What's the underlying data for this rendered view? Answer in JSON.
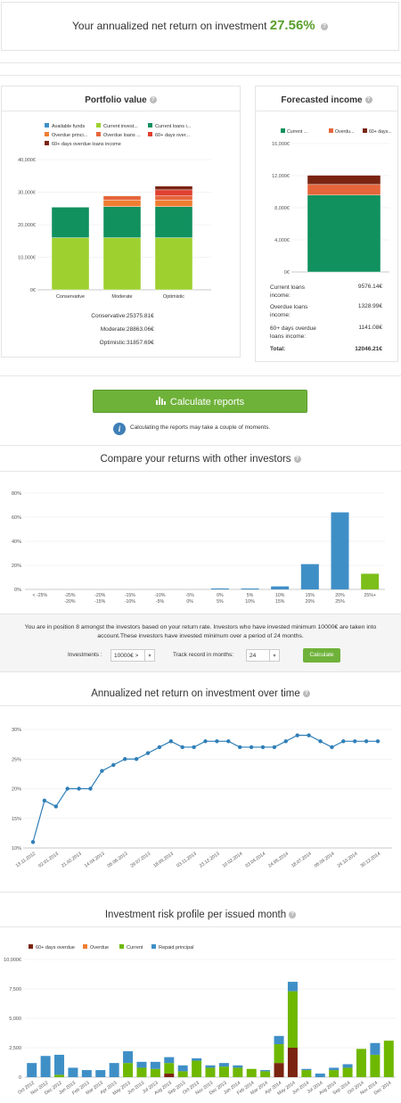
{
  "header": {
    "text": "Your annualized net return on investment",
    "value": "27.56%",
    "accent": "#5aa02c"
  },
  "portfolio": {
    "title": "Portfolio value",
    "legend": [
      {
        "label": "Available funds",
        "color": "#3f8fc7"
      },
      {
        "label": "Current invest...",
        "color": "#9ed02f"
      },
      {
        "label": "Current loans i...",
        "color": "#10915e"
      },
      {
        "label": "Overdue princi...",
        "color": "#ef7d31"
      },
      {
        "label": "Overdue loans ...",
        "color": "#e5663b"
      },
      {
        "label": "60+ days over...",
        "color": "#e04030"
      },
      {
        "label": "60+ days overdue loans income",
        "color": "#7b2412"
      }
    ],
    "summary": [
      {
        "label": "Conservative:",
        "value": "25375.81€"
      },
      {
        "label": "Moderate:",
        "value": "28863.06€"
      },
      {
        "label": "Optimistic:",
        "value": "31857.69€"
      }
    ]
  },
  "forecast": {
    "title": "Forecasted income",
    "legend": [
      {
        "label": "Current ...",
        "color": "#10915e"
      },
      {
        "label": "Overdu...",
        "color": "#e5663b"
      },
      {
        "label": "60+ days...",
        "color": "#7b2412"
      }
    ],
    "rows": [
      {
        "label": "Current loans income:",
        "value": "9576.14€"
      },
      {
        "label": "Overdue loans income:",
        "value": "1328.99€"
      },
      {
        "label": "60+ days overdue loans income:",
        "value": "1141.08€"
      },
      {
        "label": "Total:",
        "value": "12046.21€"
      }
    ]
  },
  "calc": {
    "button": "Calculate reports",
    "note": "Calculating the reports may take a couple of moments."
  },
  "compare": {
    "title": "Compare your returns with other investors",
    "position_text": "You are in position 8 amongst the investors based on your return rate. Investors who have invested minimum 10000€ are taken into account.These investors have invested minimum over a period of 24 months.",
    "investments_label": "Investments :",
    "investments_value": "10000€ >",
    "track_label": "Track record in months:",
    "track_value": "24",
    "button": "Calculate"
  },
  "returns_time": {
    "title": "Annualized net return on investment over time"
  },
  "risk": {
    "title": "Investment risk profile per issued month",
    "legend": [
      {
        "label": "60+ days overdue",
        "color": "#7b2412"
      },
      {
        "label": "Overdue",
        "color": "#ef7d31"
      },
      {
        "label": "Current",
        "color": "#6fb800"
      },
      {
        "label": "Repaid principal",
        "color": "#3f8fc7"
      }
    ]
  },
  "chart_data": [
    {
      "type": "bar",
      "id": "portfolio-value",
      "stacked": true,
      "categories": [
        "Conservative",
        "Moderate",
        "Optimistic"
      ],
      "ylim": [
        0,
        40000
      ],
      "yticks": [
        "0€",
        "10,000€",
        "20,000€",
        "30,000€",
        "40,000€"
      ],
      "series": [
        {
          "name": "Current invest...",
          "values": [
            16000,
            16000,
            16000
          ]
        },
        {
          "name": "Current loans i...",
          "values": [
            9375.81,
            9576.14,
            9576.14
          ]
        },
        {
          "name": "Overdue princi...",
          "values": [
            0,
            1958,
            1958
          ]
        },
        {
          "name": "Overdue loans ...",
          "values": [
            0,
            1328.99,
            1328.99
          ]
        },
        {
          "name": "60+ days over...",
          "values": [
            0,
            0,
            1853
          ]
        },
        {
          "name": "60+ days overdue loans income",
          "values": [
            0,
            0,
            1141.08
          ]
        }
      ]
    },
    {
      "type": "bar",
      "id": "forecasted-income",
      "stacked": true,
      "categories": [
        ""
      ],
      "ylim": [
        0,
        16000
      ],
      "yticks": [
        "0€",
        "4,000€",
        "8,000€",
        "12,000€",
        "16,000€"
      ],
      "series": [
        {
          "name": "Current ...",
          "values": [
            9576.14
          ]
        },
        {
          "name": "Overdu...",
          "values": [
            1328.99
          ]
        },
        {
          "name": "60+ days...",
          "values": [
            1141.08
          ]
        }
      ]
    },
    {
      "type": "bar",
      "id": "compare-returns",
      "categories": [
        "< -25%",
        "-25%\n-20%",
        "-20%\n-15%",
        "-15%\n-10%",
        "-10%\n-5%",
        "-5%\n0%",
        "0%\n5%",
        "5%\n10%",
        "10%\n15%",
        "15%\n20%",
        "20%\n25%",
        "25%+"
      ],
      "values": [
        0,
        0,
        0,
        0,
        0,
        0,
        0.8,
        0.2,
        2.5,
        21,
        64,
        13
      ],
      "highlight_index": 11,
      "ylim": [
        0,
        80
      ],
      "yticks": [
        "0%",
        "20%",
        "40%",
        "60%",
        "80%"
      ]
    },
    {
      "type": "line",
      "id": "return-over-time",
      "ylim": [
        10,
        30
      ],
      "yticks": [
        "10%",
        "15%",
        "20%",
        "25%",
        "30%"
      ],
      "xtick_labels": [
        "13.11.2012",
        "02.01.2013",
        "21.02.2013",
        "14.04.2013",
        "05.06.2013",
        "29.07.2013",
        "18.09.2013",
        "03.11.2013",
        "23.12.2013",
        "10.02.2014",
        "03.04.2014",
        "24.05.2014",
        "18.07.2014",
        "05.09.2014",
        "24.10.2014",
        "30.12.2014"
      ],
      "values": [
        11,
        18,
        17,
        20,
        20,
        20,
        23,
        24,
        25,
        25,
        26,
        27,
        28,
        27,
        27,
        28,
        28,
        28,
        27,
        27,
        27,
        27,
        28,
        29,
        29,
        28,
        27,
        28,
        28,
        28,
        28
      ]
    },
    {
      "type": "bar",
      "id": "risk-profile",
      "stacked": true,
      "categories": [
        "Oct 2012",
        "Nov 2012",
        "Dec 2012",
        "Jan 2013",
        "Feb 2013",
        "Mar 2013",
        "Apr 2013",
        "May 2013",
        "Jun 2013",
        "Jul 2013",
        "Aug 2013",
        "Sep 2013",
        "Oct 2013",
        "Nov 2013",
        "Dec 2013",
        "Jan 2014",
        "Feb 2014",
        "Mar 2014",
        "Apr 2014",
        "May 2014",
        "Jun 2014",
        "Jul 2014",
        "Aug 2014",
        "Sep 2014",
        "Oct 2014",
        "Nov 2014",
        "Dec 2014"
      ],
      "xtick_labels": [
        "Oct 2012",
        "Nov 2012",
        "Dec 2012",
        "Jan 2013",
        "Feb 2013",
        "Mar 2013",
        "Apr 2013",
        "May 2013",
        "Jun 2013",
        "Jul 2013",
        "Aug 2013",
        "Sep 2013",
        "Oct 2013",
        "Nov 2013",
        "Dec 2013",
        "Jan 2014",
        "Feb 2014",
        "Mar 2014",
        "Apr 2014",
        "May 2014",
        "Jun 2014",
        "Jul 2014",
        "Aug 2014",
        "Sep 2014",
        "Oct 2014",
        "Nov 2014",
        "Dec 2014"
      ],
      "ylim": [
        0,
        10000
      ],
      "yticks": [
        "0",
        "2,500",
        "5,000",
        "7,500",
        "10,000€"
      ],
      "series": [
        {
          "name": "60+ days overdue",
          "values": [
            0,
            0,
            0,
            0,
            0,
            0,
            0,
            0,
            0,
            0,
            300,
            0,
            0,
            0,
            0,
            0,
            0,
            0,
            1200,
            2500,
            0,
            0,
            0,
            0,
            0,
            0,
            0
          ]
        },
        {
          "name": "Overdue",
          "values": [
            0,
            0,
            0,
            0,
            0,
            0,
            0,
            0,
            0,
            0,
            0,
            0,
            0,
            0,
            0,
            0,
            0,
            0,
            0,
            0,
            0,
            0,
            0,
            0,
            0,
            0,
            0
          ]
        },
        {
          "name": "Current",
          "values": [
            0,
            0,
            200,
            0,
            0,
            0,
            0,
            1200,
            800,
            700,
            900,
            500,
            1400,
            800,
            900,
            800,
            700,
            500,
            1600,
            4800,
            600,
            0,
            600,
            800,
            2400,
            1900,
            3100
          ]
        },
        {
          "name": "Repaid principal",
          "values": [
            1200,
            1800,
            1700,
            800,
            600,
            600,
            1200,
            1000,
            500,
            600,
            500,
            500,
            200,
            200,
            300,
            200,
            0,
            100,
            700,
            800,
            100,
            300,
            200,
            300,
            0,
            1000,
            0
          ]
        }
      ]
    }
  ]
}
